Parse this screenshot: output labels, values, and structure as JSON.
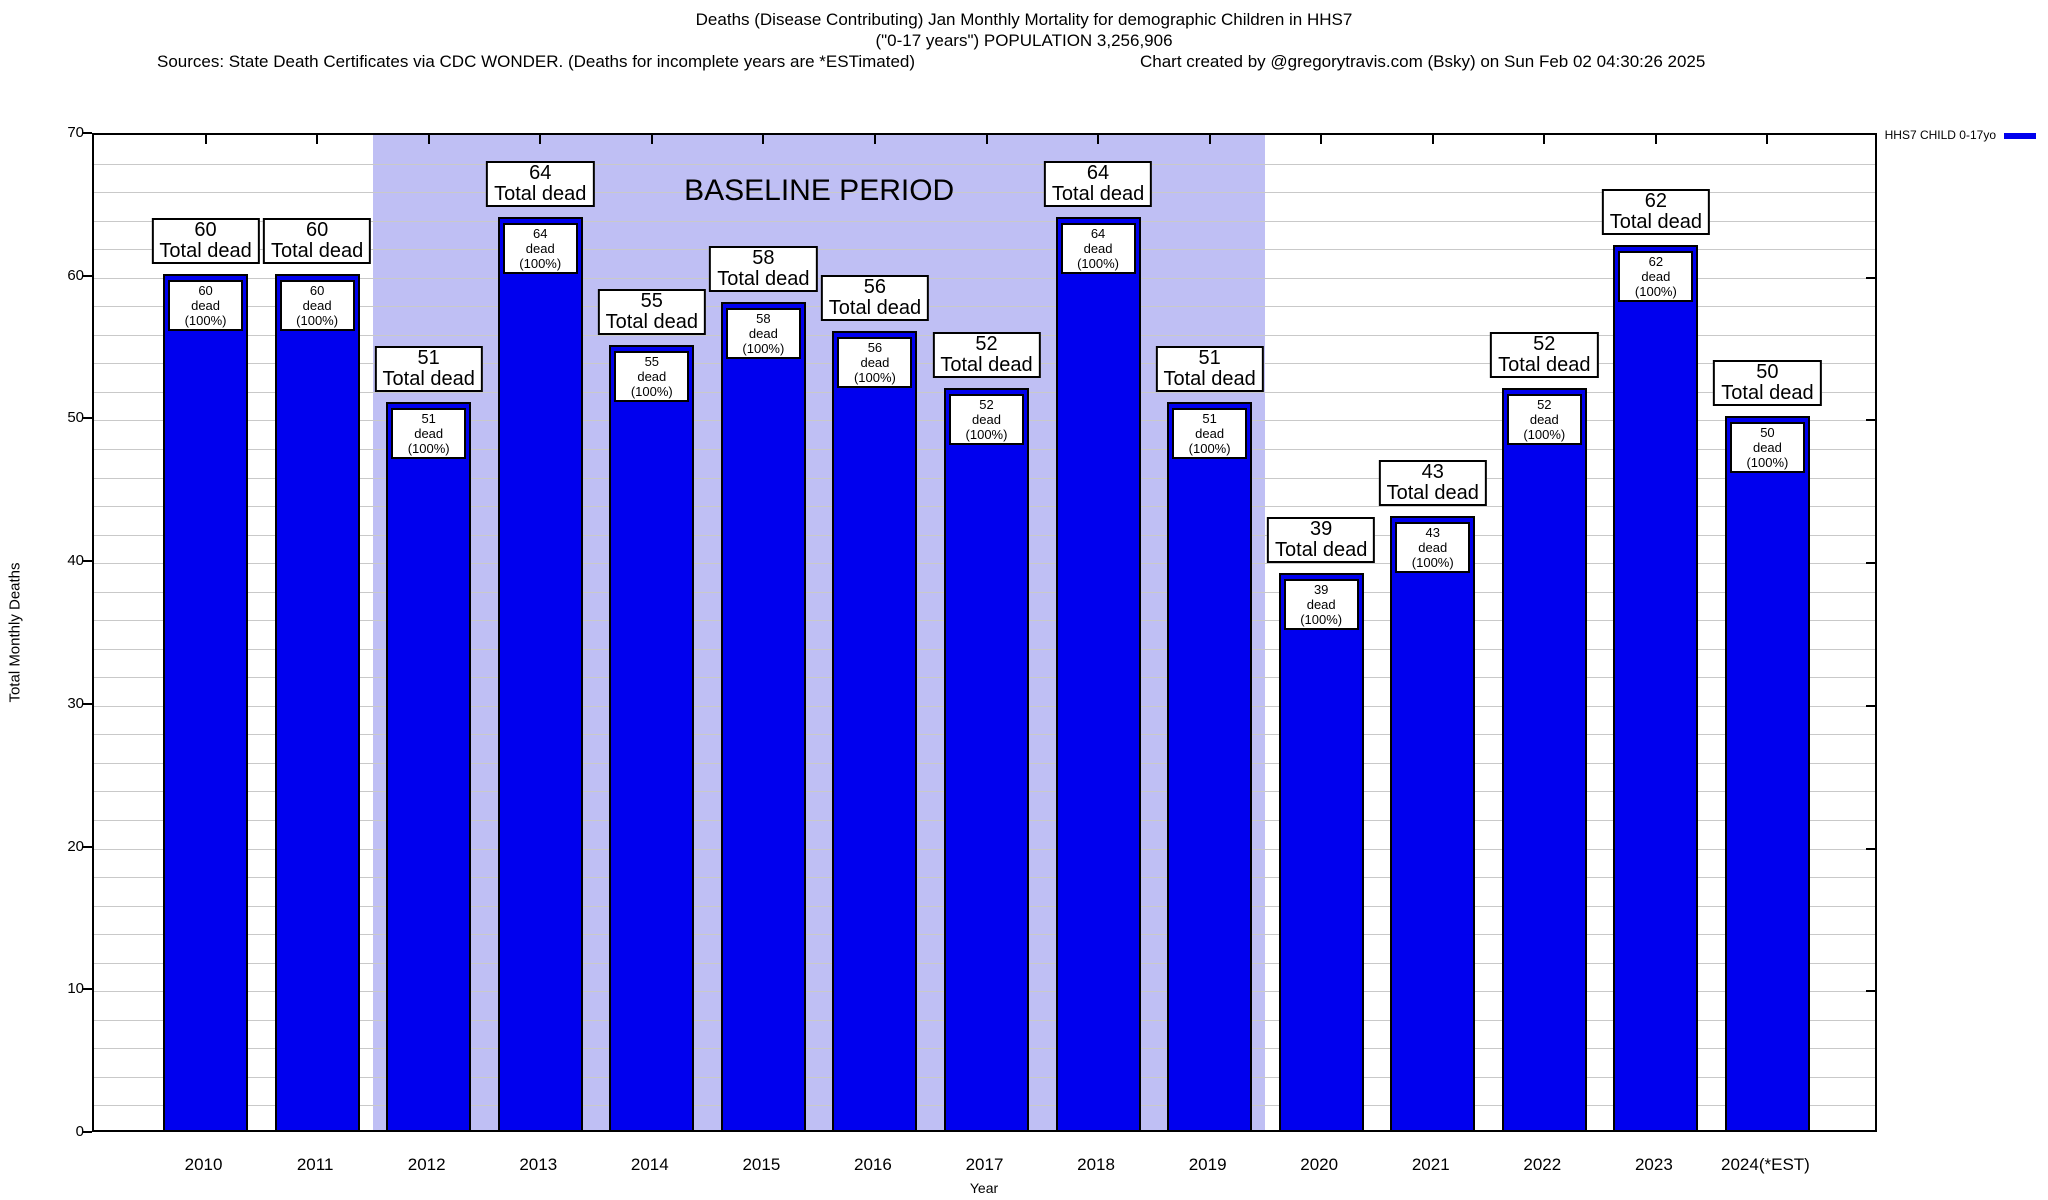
{
  "header": {
    "title_line1": "Deaths (Disease Contributing) Jan Monthly Mortality for demographic Children in HHS7",
    "title_line2": "(\"0-17 years\") POPULATION 3,256,906",
    "sources": "Sources: State Death Certificates via CDC WONDER. (Deaths for incomplete years are *ESTimated)",
    "credit": "Chart created by @gregorytravis.com (Bsky) on Sun Feb 02 04:30:26 2025"
  },
  "legend": {
    "series_label": "HHS7 CHILD 0-17yo"
  },
  "chart_data": {
    "type": "bar",
    "title": "Deaths (Disease Contributing) Jan Monthly Mortality for demographic Children in HHS7",
    "subtitle": "(\"0-17 years\") POPULATION 3,256,906",
    "categories": [
      "2010",
      "2011",
      "2012",
      "2013",
      "2014",
      "2015",
      "2016",
      "2017",
      "2018",
      "2019",
      "2020",
      "2021",
      "2022",
      "2023",
      "2024(*EST)"
    ],
    "values": [
      60,
      60,
      51,
      64,
      55,
      58,
      56,
      52,
      64,
      51,
      39,
      43,
      52,
      62,
      50
    ],
    "series_name": "HHS7 CHILD 0-17yo",
    "bar_top_label_suffix": "Total dead",
    "bar_inner_label_suffix": "dead (100%)",
    "xlabel": "Year",
    "ylabel": "Total Monthly Deaths",
    "ylim": [
      0,
      70
    ],
    "ytick_labels": [
      0,
      10,
      20,
      30,
      40,
      50,
      60,
      70
    ],
    "grid_step": 2,
    "grid_on": true,
    "legend_position": "top-right",
    "baseline_band": {
      "label": "BASELINE PERIOD",
      "from_category": "2012",
      "to_category": "2019"
    },
    "colors": {
      "bar": "#0000EE",
      "baseline_bg": "#BFBFF4",
      "grid": "#C9C9C9"
    }
  }
}
